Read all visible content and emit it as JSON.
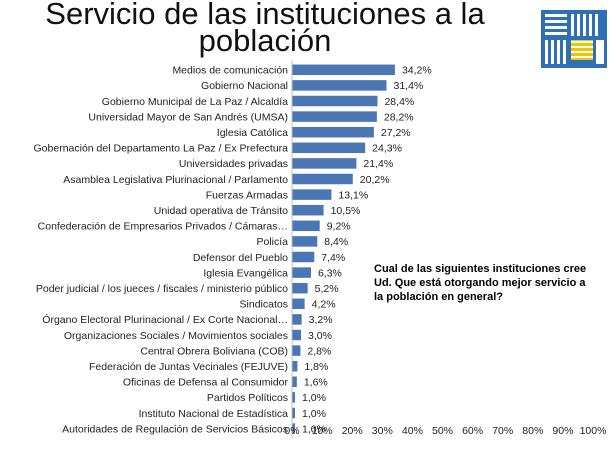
{
  "title_line1": "Servicio de las instituciones a la",
  "title_line2": "población",
  "question": "Cual de las siguientes instituciones cree Ud. Que está otorgando mejor servicio a la población en general?",
  "logo_icon": "institution-logo-icon",
  "colors": {
    "bar": "#4a76b4",
    "axis": "#bfbfbf",
    "logo_blue": "#2f6fb5",
    "logo_yellow": "#f2c500"
  },
  "chart_data": {
    "type": "bar",
    "orientation": "horizontal",
    "categories": [
      "Medios de comunicación",
      "Gobierno Nacional",
      "Gobierno Municipal de La Paz / Alcaldía",
      "Universidad Mayor de San Andrés (UMSA)",
      "Iglesia Católica",
      "Gobernación del Departamento La Paz / Ex Prefectura",
      "Universidades privadas",
      "Asamblea Legislativa Plurinacional / Parlamento",
      "Fuerzas Armadas",
      "Unidad operativa de Tránsito",
      "Confederación de Empresarios Privados / Cámaras…",
      "Policía",
      "Defensor del Pueblo",
      "Iglesia Evangélica",
      "Poder judicial / los jueces / fiscales / ministerio público",
      "Sindicatos",
      "Órgano Electoral Plurinacional / Ex Corte Nacional…",
      "Organizaciones Sociales / Movimientos sociales",
      "Central Obrera Boliviana (COB)",
      "Federación de Juntas Vecinales (FEJUVE)",
      "Oficinas de Defensa al Consumidor",
      "Partidos Políticos",
      "Instituto Nacional de Estadística",
      "Autoridades de Regulación de Servicios Básicos"
    ],
    "values": [
      34.2,
      31.4,
      28.4,
      28.2,
      27.2,
      24.3,
      21.4,
      20.2,
      13.1,
      10.5,
      9.2,
      8.4,
      7.4,
      6.3,
      5.2,
      4.2,
      3.2,
      3.0,
      2.8,
      1.8,
      1.6,
      1.0,
      1.0,
      1.0
    ],
    "value_labels": [
      "34,2%",
      "31,4%",
      "28,4%",
      "28,2%",
      "27,2%",
      "24,3%",
      "21,4%",
      "20,2%",
      "13,1%",
      "10,5%",
      "9,2%",
      "8,4%",
      "7,4%",
      "6,3%",
      "5,2%",
      "4,2%",
      "3,2%",
      "3,0%",
      "2,8%",
      "1,8%",
      "1,6%",
      "1,0%",
      "1,0%",
      "1,0%"
    ],
    "xlim": [
      0,
      100
    ],
    "x_ticks": [
      "0%",
      "10%",
      "20%",
      "30%",
      "40%",
      "50%",
      "60%",
      "70%",
      "80%",
      "90%",
      "100%"
    ],
    "grid": false,
    "legend": "none"
  }
}
